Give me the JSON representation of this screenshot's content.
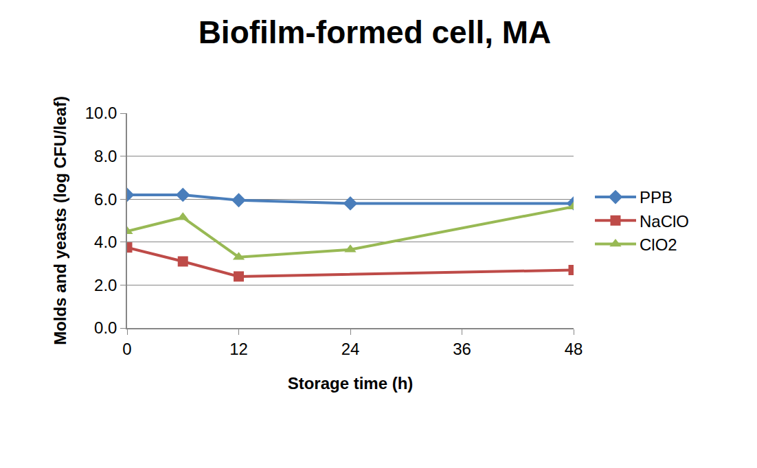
{
  "chart_data": {
    "type": "line",
    "title": "Biofilm-formed cell, MA",
    "x_label": "Storage time (h)",
    "y_label": "Molds and yeasts (log CFU/leaf)",
    "x": [
      0,
      6,
      12,
      24,
      48
    ],
    "series": [
      {
        "name": "PPB",
        "color": "#4a7ebb",
        "marker": "diamond",
        "values": [
          6.2,
          6.2,
          5.95,
          5.8,
          5.8
        ]
      },
      {
        "name": "NaClO",
        "color": "#be4b48",
        "marker": "square",
        "x": [
          0,
          6,
          12,
          48
        ],
        "values": [
          3.75,
          3.1,
          2.4,
          2.7
        ]
      },
      {
        "name": "ClO2",
        "color": "#98b954",
        "marker": "triangle-up",
        "values": [
          4.5,
          5.15,
          3.3,
          3.65,
          5.65
        ]
      }
    ],
    "xlim": [
      0,
      48
    ],
    "xticks": [
      0,
      12,
      24,
      36,
      48
    ],
    "ylim": [
      0,
      10
    ],
    "yticks": [
      {
        "value": 0,
        "label": "0.0"
      },
      {
        "value": 2,
        "label": "2.0"
      },
      {
        "value": 4,
        "label": "4.0"
      },
      {
        "value": 6,
        "label": "6.0"
      },
      {
        "value": 8,
        "label": "8.0"
      },
      {
        "value": 10,
        "label": "10.0"
      }
    ],
    "grid": true,
    "legend": "right"
  }
}
